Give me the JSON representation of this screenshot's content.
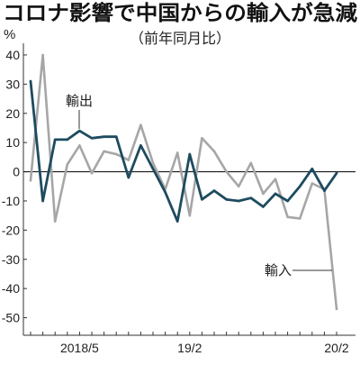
{
  "chart_data": {
    "type": "line",
    "title": "コロナ影響で中国からの輸入が急減",
    "subtitle": "（前年同月比）",
    "ylabel": "%",
    "ylim": [
      -56,
      44
    ],
    "y_ticks": [
      40,
      30,
      20,
      10,
      0,
      -10,
      -20,
      -30,
      -40,
      -50
    ],
    "grid": false,
    "x": [
      "2018/1",
      "2018/2",
      "2018/3",
      "2018/4",
      "2018/5",
      "2018/6",
      "2018/7",
      "2018/8",
      "2018/9",
      "2018/10",
      "2018/11",
      "2018/12",
      "2019/1",
      "2019/2",
      "2019/3",
      "2019/4",
      "2019/5",
      "2019/6",
      "2019/7",
      "2019/8",
      "2019/9",
      "2019/10",
      "2019/11",
      "2019/12",
      "2020/1",
      "2020/2"
    ],
    "x_ticks": [
      {
        "label": "2018/5",
        "at": "2018/5"
      },
      {
        "label": "19/2",
        "at": "2019/2"
      },
      {
        "label": "20/2",
        "at": "2020/2"
      }
    ],
    "series": [
      {
        "name": "輸出",
        "color": "#1e4b5f",
        "values": [
          31,
          -10,
          11,
          11,
          14,
          11.5,
          12,
          12,
          -2,
          9,
          1,
          -7,
          -17,
          6,
          -9.5,
          -6.5,
          -9.5,
          -10,
          -9,
          -12,
          -7.5,
          -10,
          -5,
          1,
          -6.5,
          -0.5
        ]
      },
      {
        "name": "輸入",
        "color": "#a6a6a6",
        "values": [
          -3,
          40,
          -17,
          2.5,
          9,
          -0.5,
          7,
          6,
          4,
          16,
          3,
          -6,
          6.5,
          -15,
          11.5,
          7,
          0,
          -5,
          3,
          -7.5,
          -2.5,
          -15.5,
          -16,
          -4,
          -6,
          -47
        ]
      }
    ]
  }
}
